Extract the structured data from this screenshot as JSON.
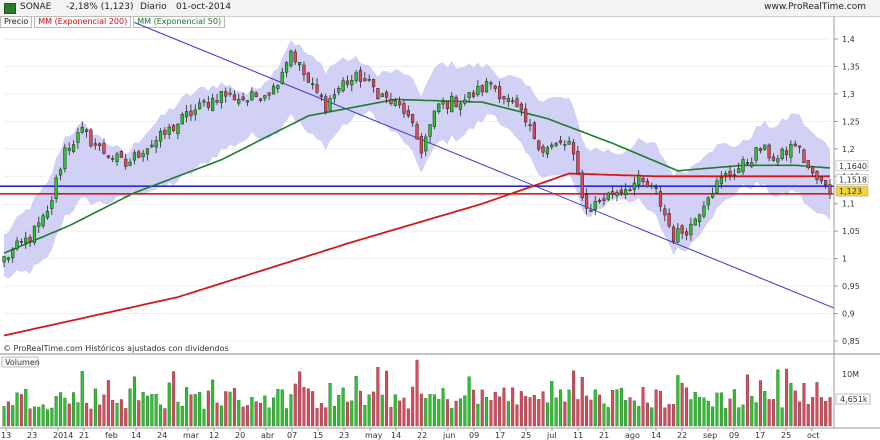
{
  "header": {
    "symbol": "SONAE",
    "change": "-2,18% (1,123)",
    "period": "Diario",
    "date": "01-oct-2014",
    "site": "www.ProRealTime.com"
  },
  "legend": {
    "price": "Precio",
    "ema200": "MM (Exponencial 200)",
    "ema50": "MM (Exponencial 50)"
  },
  "volume_panel": {
    "label": "Volumen",
    "tick_10m": "10M",
    "last_value": "4,651k"
  },
  "footer": {
    "copyright": "© ProRealTime.com  Históricos ajustados con dividendos"
  },
  "price_axis": {
    "ticks": [
      "1,4",
      "1,35",
      "1,3",
      "1,25",
      "1,2",
      "1,15",
      "1,1",
      "1,05",
      "1",
      "0,95",
      "0,9",
      "0,85"
    ],
    "ema50_label": "1,1640",
    "ema200_label": "1,1518",
    "price_label": "1,123"
  },
  "colors": {
    "up": "#26c626",
    "down": "#e0485a",
    "ema200": "#d01a1a",
    "ema50": "#1f7a2e",
    "band": "#c9c9f3",
    "trendline": "#3a3ad0",
    "hline_blue": "#2a2ad8",
    "hline_red": "#d81a1a",
    "price_label_bg": "#f2d43a"
  },
  "chart_data": {
    "type": "candlestick",
    "title": "SONAE",
    "period": "Diario",
    "y_range": [
      0.83,
      1.42
    ],
    "x_labels": [
      "13",
      "23",
      "2014",
      "21",
      "feb",
      "14",
      "24",
      "mar",
      "12",
      "20",
      "abr",
      "07",
      "15",
      "23",
      "may",
      "14",
      "22",
      "jun",
      "09",
      "17",
      "25",
      "jul",
      "11",
      "21",
      "ago",
      "14",
      "22",
      "sep",
      "09",
      "17",
      "25",
      "oct"
    ],
    "price_waypoints": [
      {
        "i": 0,
        "v": 1.0
      },
      {
        "i": 6,
        "v": 1.04
      },
      {
        "i": 10,
        "v": 1.08
      },
      {
        "i": 14,
        "v": 1.2
      },
      {
        "i": 18,
        "v": 1.23
      },
      {
        "i": 22,
        "v": 1.2
      },
      {
        "i": 28,
        "v": 1.17
      },
      {
        "i": 32,
        "v": 1.2
      },
      {
        "i": 36,
        "v": 1.22
      },
      {
        "i": 42,
        "v": 1.26
      },
      {
        "i": 50,
        "v": 1.3
      },
      {
        "i": 56,
        "v": 1.29
      },
      {
        "i": 62,
        "v": 1.31
      },
      {
        "i": 66,
        "v": 1.38
      },
      {
        "i": 70,
        "v": 1.32
      },
      {
        "i": 74,
        "v": 1.28
      },
      {
        "i": 78,
        "v": 1.32
      },
      {
        "i": 82,
        "v": 1.33
      },
      {
        "i": 88,
        "v": 1.29
      },
      {
        "i": 92,
        "v": 1.27
      },
      {
        "i": 96,
        "v": 1.2
      },
      {
        "i": 100,
        "v": 1.28
      },
      {
        "i": 106,
        "v": 1.29
      },
      {
        "i": 112,
        "v": 1.32
      },
      {
        "i": 118,
        "v": 1.27
      },
      {
        "i": 124,
        "v": 1.2
      },
      {
        "i": 130,
        "v": 1.21
      },
      {
        "i": 134,
        "v": 1.09
      },
      {
        "i": 140,
        "v": 1.12
      },
      {
        "i": 146,
        "v": 1.14
      },
      {
        "i": 150,
        "v": 1.12
      },
      {
        "i": 154,
        "v": 1.04
      },
      {
        "i": 158,
        "v": 1.06
      },
      {
        "i": 162,
        "v": 1.12
      },
      {
        "i": 166,
        "v": 1.15
      },
      {
        "i": 170,
        "v": 1.17
      },
      {
        "i": 174,
        "v": 1.2
      },
      {
        "i": 178,
        "v": 1.18
      },
      {
        "i": 182,
        "v": 1.21
      },
      {
        "i": 186,
        "v": 1.15
      },
      {
        "i": 190,
        "v": 1.123
      }
    ],
    "bars": 191,
    "ema200_waypoints": [
      {
        "i": 0,
        "v": 0.86
      },
      {
        "i": 40,
        "v": 0.93
      },
      {
        "i": 80,
        "v": 1.03
      },
      {
        "i": 110,
        "v": 1.1
      },
      {
        "i": 130,
        "v": 1.155
      },
      {
        "i": 150,
        "v": 1.15
      },
      {
        "i": 170,
        "v": 1.15
      },
      {
        "i": 190,
        "v": 1.15
      }
    ],
    "ema50_waypoints": [
      {
        "i": 0,
        "v": 1.01
      },
      {
        "i": 15,
        "v": 1.06
      },
      {
        "i": 30,
        "v": 1.12
      },
      {
        "i": 50,
        "v": 1.18
      },
      {
        "i": 70,
        "v": 1.26
      },
      {
        "i": 90,
        "v": 1.29
      },
      {
        "i": 110,
        "v": 1.285
      },
      {
        "i": 125,
        "v": 1.255
      },
      {
        "i": 140,
        "v": 1.21
      },
      {
        "i": 155,
        "v": 1.16
      },
      {
        "i": 170,
        "v": 1.17
      },
      {
        "i": 182,
        "v": 1.17
      },
      {
        "i": 190,
        "v": 1.165
      }
    ],
    "band_width": 0.055,
    "horizontal_lines": [
      {
        "value": 1.132,
        "color": "blue"
      },
      {
        "value": 1.118,
        "color": "red"
      }
    ],
    "trendline": {
      "from": {
        "i": 30,
        "v": 1.43
      },
      "to": {
        "i": 190,
        "v": 0.91
      }
    }
  }
}
